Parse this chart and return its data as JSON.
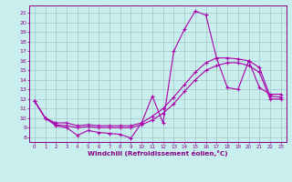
{
  "xlabel": "Windchill (Refroidissement éolien,°C)",
  "background_color": "#c8eeee",
  "grid_color": "#aacccc",
  "line_color": "#aa00aa",
  "xlim": [
    -0.5,
    23.5
  ],
  "ylim": [
    7.5,
    21.8
  ],
  "yticks": [
    8,
    9,
    10,
    11,
    12,
    13,
    14,
    15,
    16,
    17,
    18,
    19,
    20,
    21
  ],
  "xticks": [
    0,
    1,
    2,
    3,
    4,
    5,
    6,
    7,
    8,
    9,
    10,
    11,
    12,
    13,
    14,
    15,
    16,
    17,
    18,
    19,
    20,
    21,
    22,
    23
  ],
  "lines": [
    {
      "x": [
        0,
        1,
        2,
        3,
        4,
        5,
        6,
        7,
        8,
        9,
        10,
        11,
        12,
        13,
        14,
        15,
        16,
        17,
        18,
        19,
        20,
        21,
        22,
        23
      ],
      "y": [
        11.8,
        10.0,
        9.2,
        9.0,
        8.2,
        8.7,
        8.5,
        8.4,
        8.3,
        7.9,
        9.5,
        12.3,
        9.5,
        17.0,
        19.3,
        21.2,
        20.8,
        16.3,
        13.2,
        13.0,
        16.0,
        13.2,
        12.5,
        12.5
      ]
    },
    {
      "x": [
        0,
        1,
        2,
        3,
        4,
        5,
        6,
        7,
        8,
        9,
        10,
        11,
        12,
        13,
        14,
        15,
        16,
        17,
        18,
        19,
        20,
        21,
        22,
        23
      ],
      "y": [
        11.8,
        10.0,
        9.5,
        9.5,
        9.2,
        9.3,
        9.2,
        9.2,
        9.2,
        9.2,
        9.5,
        10.2,
        11.0,
        12.2,
        13.5,
        14.8,
        15.8,
        16.3,
        16.3,
        16.2,
        16.0,
        15.3,
        12.3,
        12.2
      ]
    },
    {
      "x": [
        0,
        1,
        2,
        3,
        4,
        5,
        6,
        7,
        8,
        9,
        10,
        11,
        12,
        13,
        14,
        15,
        16,
        17,
        18,
        19,
        20,
        21,
        22,
        23
      ],
      "y": [
        11.8,
        10.0,
        9.3,
        9.2,
        9.0,
        9.1,
        9.0,
        9.0,
        9.0,
        9.0,
        9.3,
        9.8,
        10.5,
        11.5,
        12.8,
        14.0,
        15.0,
        15.5,
        15.8,
        15.8,
        15.5,
        14.8,
        12.0,
        12.0
      ]
    }
  ]
}
